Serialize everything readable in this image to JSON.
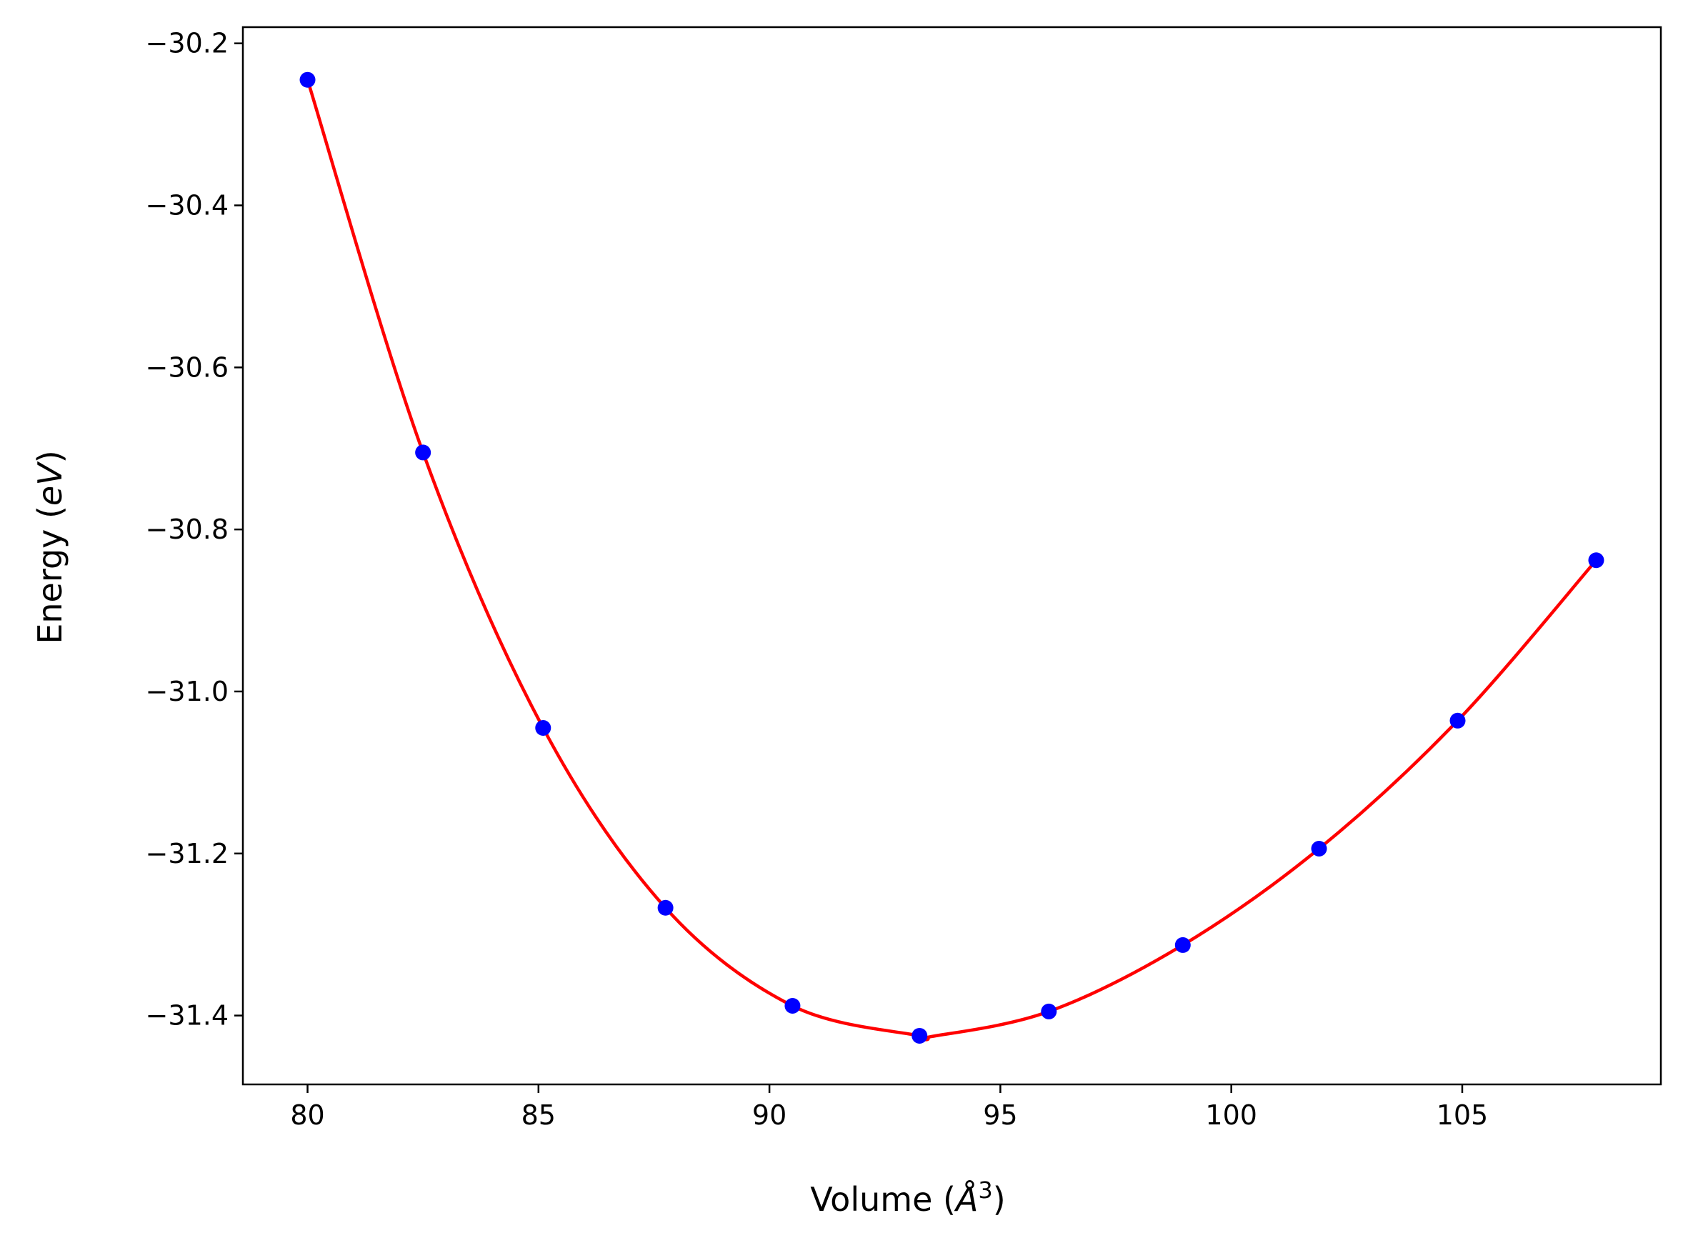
{
  "chart_data": {
    "type": "line",
    "xlabel": "Volume (Å³)",
    "xlabel_parts": {
      "prefix": "Volume (",
      "symbol": "Å",
      "exponent": "3",
      "suffix": ")"
    },
    "ylabel": "Energy (eV)",
    "ylabel_parts": {
      "prefix": "Energy (",
      "unit": "eV",
      "suffix": ")"
    },
    "xlim": [
      78.6,
      109.3
    ],
    "ylim": [
      -31.485,
      -30.18
    ],
    "xticks": [
      80,
      85,
      90,
      95,
      100,
      105
    ],
    "yticks": [
      -30.2,
      -30.4,
      -30.6,
      -30.8,
      -31.0,
      -31.2,
      -31.4
    ],
    "ytick_labels": [
      "−30.2",
      "−30.4",
      "−30.6",
      "−30.8",
      "−31.0",
      "−31.2",
      "−31.4"
    ],
    "grid": false,
    "series": [
      {
        "kind": "points",
        "color": "#0000ff",
        "x": [
          80.0,
          82.5,
          85.1,
          87.75,
          90.5,
          93.25,
          96.05,
          98.95,
          101.9,
          104.9,
          107.9
        ],
        "y": [
          -30.245,
          -30.705,
          -31.045,
          -31.267,
          -31.388,
          -31.425,
          -31.395,
          -31.313,
          -31.194,
          -31.036,
          -30.838
        ]
      },
      {
        "kind": "fit-curve",
        "color": "#ff0000",
        "x": [
          80.0,
          82.5,
          85.1,
          87.75,
          90.5,
          93.25,
          93.5,
          96.05,
          98.95,
          101.9,
          104.9,
          107.9
        ],
        "y": [
          -30.245,
          -30.705,
          -31.045,
          -31.267,
          -31.388,
          -31.425,
          -31.426,
          -31.395,
          -31.313,
          -31.194,
          -31.036,
          -30.838
        ]
      }
    ]
  }
}
